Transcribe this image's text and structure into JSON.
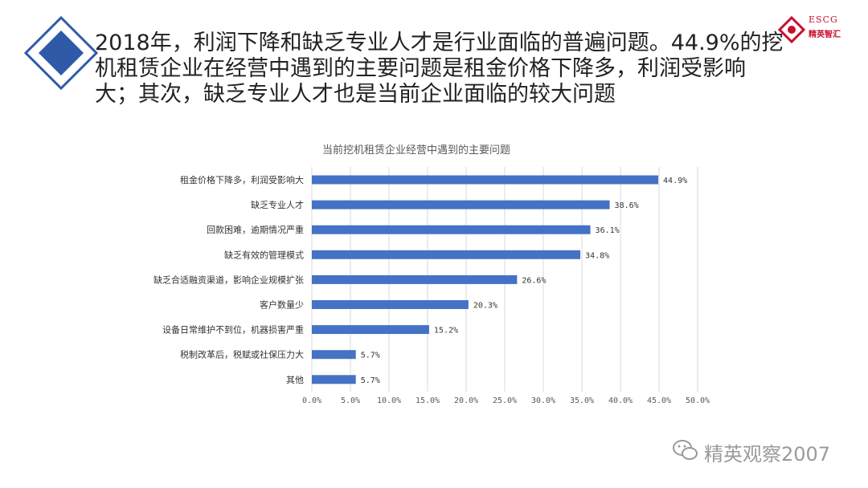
{
  "headline": "2018年，利润下降和缺乏专业人才是行业面临的普遍问题。44.9%的挖机租赁企业在经营中遇到的主要问题是租金价格下降多，利润受影响大；其次，缺乏专业人才也是当前企业面临的较大问题",
  "logo": {
    "brand": "ESCG",
    "name": "精英智汇"
  },
  "watermark": {
    "text": "精英观察2007",
    "icon": "wechat-icon"
  },
  "colors": {
    "bar": "#4472c4",
    "accent": "#2e5aa8",
    "grid": "#d9d9d9"
  },
  "chart_data": {
    "type": "bar",
    "orientation": "horizontal",
    "title": "当前挖机租赁企业经营中遇到的主要问题",
    "categories": [
      "租金价格下降多，利润受影响大",
      "缺乏专业人才",
      "回款困难，逾期情况严重",
      "缺乏有效的管理模式",
      "缺乏合适融资渠道，影响企业规模扩张",
      "客户数量少",
      "设备日常维护不到位，机器损害严重",
      "税制改革后，税赋或社保压力大",
      "其他"
    ],
    "values": [
      44.9,
      38.6,
      36.1,
      34.8,
      26.6,
      20.3,
      15.2,
      5.7,
      5.7
    ],
    "value_labels": [
      "44.9%",
      "38.6%",
      "36.1%",
      "34.8%",
      "26.6%",
      "20.3%",
      "15.2%",
      "5.7%",
      "5.7%"
    ],
    "xlim": [
      0,
      50
    ],
    "xticks": [
      "0.0%",
      "5.0%",
      "10.0%",
      "15.0%",
      "20.0%",
      "25.0%",
      "30.0%",
      "35.0%",
      "40.0%",
      "45.0%",
      "50.0%"
    ],
    "grid": true
  }
}
